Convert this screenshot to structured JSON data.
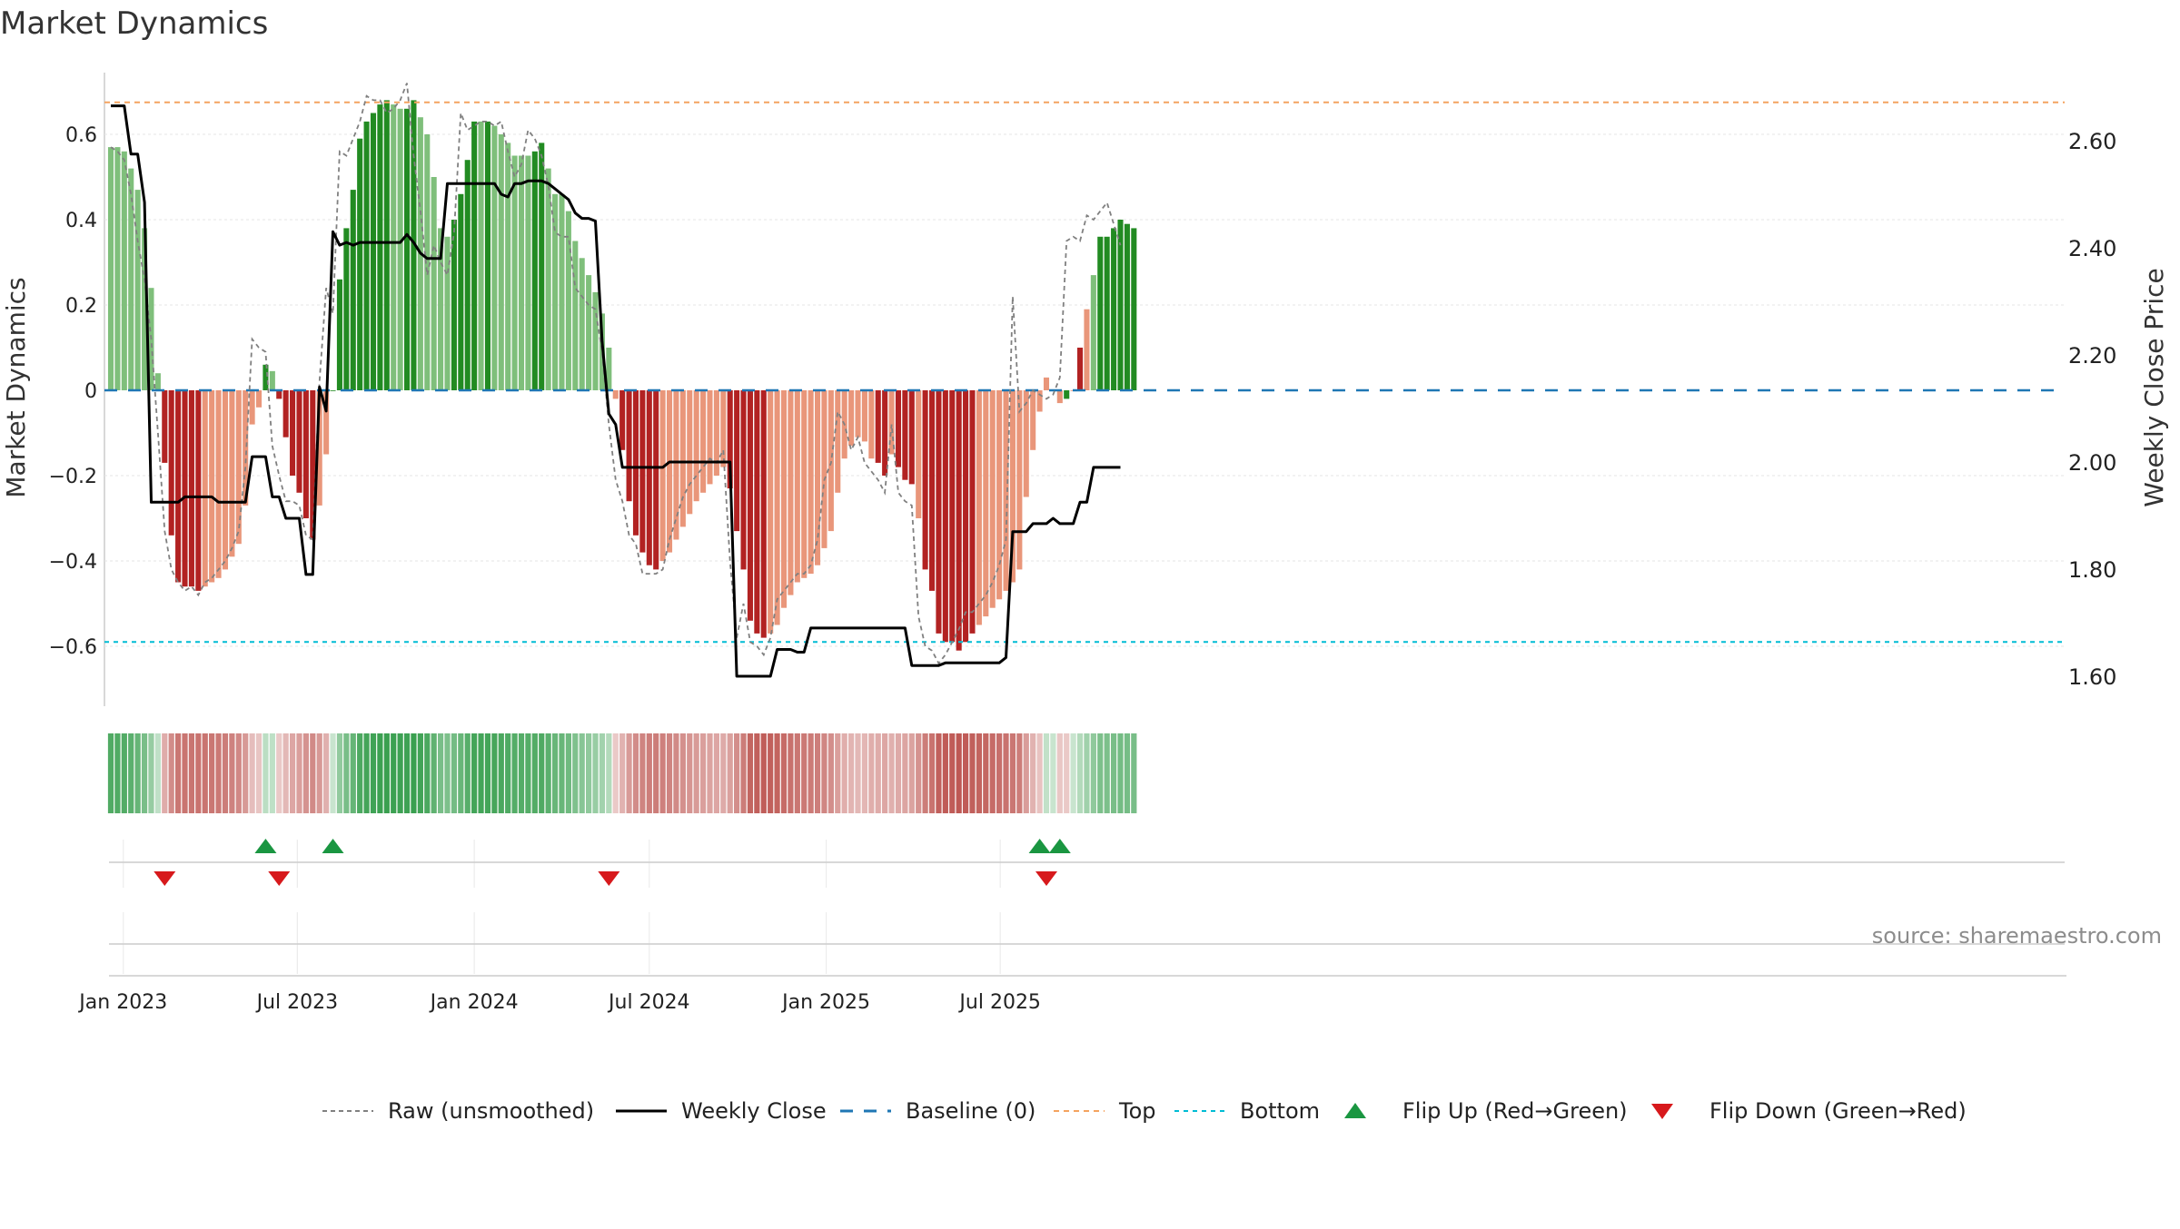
{
  "chart_data": {
    "type": "bar",
    "title": "Market Dynamics",
    "ylabel_left": "Market Dynamics",
    "ylabel_right": "Weekly Close Price",
    "source": "source: sharemaestro.com",
    "left_ylim": [
      -0.74,
      0.74
    ],
    "right_ylim": [
      1.535,
      2.72
    ],
    "left_ticks": [
      {
        "value": 0.6,
        "label": "0.6"
      },
      {
        "value": 0.4,
        "label": "0.4"
      },
      {
        "value": 0.2,
        "label": "0.2"
      },
      {
        "value": 0,
        "label": "0"
      },
      {
        "value": -0.2,
        "label": "−0.2"
      },
      {
        "value": -0.4,
        "label": "−0.4"
      },
      {
        "value": -0.6,
        "label": "−0.6"
      }
    ],
    "right_ticks": [
      {
        "value": 2.6,
        "label": "2.60"
      },
      {
        "value": 2.4,
        "label": "2.40"
      },
      {
        "value": 2.2,
        "label": "2.20"
      },
      {
        "value": 2.0,
        "label": "2.00"
      },
      {
        "value": 1.8,
        "label": "1.80"
      },
      {
        "value": 1.6,
        "label": "1.60"
      }
    ],
    "x_axis": {
      "start": "2022-12-19",
      "step_days": 7,
      "ticks": [
        {
          "date": "2023-01-01",
          "label": "Jan 2023"
        },
        {
          "date": "2023-07-01",
          "label": "Jul 2023"
        },
        {
          "date": "2024-01-01",
          "label": "Jan 2024"
        },
        {
          "date": "2024-07-01",
          "label": "Jul 2024"
        },
        {
          "date": "2025-01-01",
          "label": "Jan 2025"
        },
        {
          "date": "2025-07-01",
          "label": "Jul 2025"
        }
      ]
    },
    "top_level": 0.675,
    "bottom_level": -0.59,
    "baseline": 0,
    "series": [
      {
        "name": "Market Dynamics",
        "kind": "bar",
        "values": [
          0.57,
          0.57,
          0.56,
          0.52,
          0.47,
          0.38,
          0.24,
          0.04,
          -0.17,
          -0.34,
          -0.45,
          -0.46,
          -0.46,
          -0.47,
          -0.46,
          -0.45,
          -0.44,
          -0.42,
          -0.39,
          -0.36,
          -0.27,
          -0.08,
          -0.04,
          0.06,
          0.045,
          -0.02,
          -0.11,
          -0.2,
          -0.24,
          -0.3,
          -0.35,
          -0.27,
          -0.15,
          0.0,
          0.26,
          0.38,
          0.47,
          0.59,
          0.63,
          0.65,
          0.67,
          0.68,
          0.67,
          0.66,
          0.66,
          0.68,
          0.64,
          0.6,
          0.5,
          0.38,
          0.36,
          0.4,
          0.46,
          0.54,
          0.63,
          0.63,
          0.63,
          0.62,
          0.6,
          0.58,
          0.55,
          0.55,
          0.55,
          0.56,
          0.58,
          0.52,
          0.46,
          0.46,
          0.42,
          0.35,
          0.31,
          0.27,
          0.23,
          0.18,
          0.1,
          -0.02,
          -0.14,
          -0.26,
          -0.34,
          -0.38,
          -0.41,
          -0.42,
          -0.4,
          -0.38,
          -0.35,
          -0.32,
          -0.29,
          -0.26,
          -0.24,
          -0.22,
          -0.2,
          -0.18,
          -0.23,
          -0.33,
          -0.42,
          -0.54,
          -0.57,
          -0.58,
          -0.57,
          -0.55,
          -0.51,
          -0.48,
          -0.45,
          -0.44,
          -0.43,
          -0.41,
          -0.37,
          -0.33,
          -0.24,
          -0.16,
          -0.13,
          -0.11,
          -0.12,
          -0.16,
          -0.17,
          -0.2,
          -0.15,
          -0.18,
          -0.21,
          -0.22,
          -0.3,
          -0.42,
          -0.47,
          -0.57,
          -0.59,
          -0.59,
          -0.61,
          -0.59,
          -0.57,
          -0.55,
          -0.53,
          -0.51,
          -0.49,
          -0.47,
          -0.45,
          -0.42,
          -0.25,
          -0.14,
          -0.05,
          0.03,
          0.0,
          -0.03,
          -0.02,
          0.0,
          0.1,
          0.19,
          0.27,
          0.36,
          0.36,
          0.38,
          0.4,
          0.39,
          0.38
        ],
        "colors": [
          "lightgreen",
          "lightgreen",
          "lightgreen",
          "lightgreen",
          "lightgreen",
          "lightgreen",
          "lightgreen",
          "lightgreen",
          "red",
          "red",
          "red",
          "red",
          "red",
          "red",
          "salmon",
          "salmon",
          "salmon",
          "salmon",
          "salmon",
          "salmon",
          "salmon",
          "salmon",
          "salmon",
          "green",
          "lightgreen",
          "red",
          "red",
          "red",
          "red",
          "red",
          "red",
          "salmon",
          "salmon",
          "green",
          "green",
          "green",
          "green",
          "green",
          "green",
          "green",
          "green",
          "green",
          "lightgreen",
          "lightgreen",
          "green",
          "green",
          "lightgreen",
          "lightgreen",
          "lightgreen",
          "lightgreen",
          "lightgreen",
          "green",
          "green",
          "green",
          "green",
          "lightgreen",
          "green",
          "lightgreen",
          "lightgreen",
          "lightgreen",
          "lightgreen",
          "lightgreen",
          "lightgreen",
          "green",
          "green",
          "lightgreen",
          "lightgreen",
          "lightgreen",
          "lightgreen",
          "lightgreen",
          "lightgreen",
          "lightgreen",
          "lightgreen",
          "lightgreen",
          "lightgreen",
          "salmon",
          "red",
          "red",
          "red",
          "red",
          "red",
          "red",
          "salmon",
          "salmon",
          "salmon",
          "salmon",
          "salmon",
          "salmon",
          "salmon",
          "salmon",
          "salmon",
          "salmon",
          "red",
          "red",
          "red",
          "red",
          "red",
          "red",
          "salmon",
          "salmon",
          "salmon",
          "salmon",
          "salmon",
          "salmon",
          "salmon",
          "salmon",
          "salmon",
          "salmon",
          "salmon",
          "salmon",
          "salmon",
          "salmon",
          "salmon",
          "salmon",
          "red",
          "red",
          "salmon",
          "red",
          "red",
          "red",
          "salmon",
          "red",
          "red",
          "red",
          "red",
          "red",
          "red",
          "red",
          "red",
          "salmon",
          "salmon",
          "salmon",
          "salmon",
          "salmon",
          "salmon",
          "salmon",
          "salmon",
          "salmon",
          "salmon",
          "salmon",
          "salmon",
          "salmon",
          "green",
          "salmon",
          "red",
          "salmon",
          "lightgreen",
          "green",
          "green",
          "green",
          "green",
          "green",
          "green",
          "green",
          "green",
          "lightgreen",
          "lightgreen"
        ]
      },
      {
        "name": "Raw (unsmoothed)",
        "kind": "line",
        "values": [
          0.57,
          0.56,
          0.54,
          0.46,
          0.35,
          0.26,
          0.12,
          -0.1,
          -0.33,
          -0.42,
          -0.45,
          -0.47,
          -0.46,
          -0.48,
          -0.45,
          -0.44,
          -0.42,
          -0.4,
          -0.37,
          -0.33,
          -0.18,
          0.12,
          0.1,
          0.09,
          -0.13,
          -0.2,
          -0.26,
          -0.26,
          -0.27,
          -0.34,
          -0.35,
          0.02,
          0.24,
          0.18,
          0.56,
          0.55,
          0.59,
          0.63,
          0.69,
          0.68,
          0.68,
          0.65,
          0.66,
          0.68,
          0.72,
          0.55,
          0.42,
          0.27,
          0.34,
          0.3,
          0.27,
          0.37,
          0.65,
          0.61,
          0.62,
          0.63,
          0.63,
          0.62,
          0.63,
          0.56,
          0.5,
          0.53,
          0.61,
          0.59,
          0.55,
          0.48,
          0.37,
          0.36,
          0.36,
          0.24,
          0.22,
          0.2,
          0.19,
          0.09,
          -0.08,
          -0.21,
          -0.26,
          -0.34,
          -0.36,
          -0.43,
          -0.43,
          -0.43,
          -0.42,
          -0.35,
          -0.3,
          -0.25,
          -0.22,
          -0.2,
          -0.18,
          -0.16,
          -0.17,
          -0.14,
          -0.4,
          -0.58,
          -0.5,
          -0.59,
          -0.6,
          -0.62,
          -0.58,
          -0.49,
          -0.47,
          -0.45,
          -0.43,
          -0.43,
          -0.41,
          -0.35,
          -0.21,
          -0.17,
          -0.05,
          -0.08,
          -0.14,
          -0.11,
          -0.17,
          -0.19,
          -0.21,
          -0.24,
          -0.08,
          -0.24,
          -0.26,
          -0.27,
          -0.53,
          -0.6,
          -0.61,
          -0.64,
          -0.62,
          -0.59,
          -0.56,
          -0.52,
          -0.52,
          -0.5,
          -0.48,
          -0.45,
          -0.41,
          -0.35,
          0.22,
          -0.05,
          -0.03,
          0.0,
          -0.01,
          -0.02,
          -0.01,
          0.03,
          0.35,
          0.36,
          0.35,
          0.41,
          0.4,
          0.42,
          0.44,
          0.39,
          0.34
        ]
      },
      {
        "name": "Weekly Close",
        "kind": "line",
        "axis": "right",
        "values": [
          2.665,
          2.665,
          2.665,
          2.575,
          2.575,
          2.485,
          1.925,
          1.925,
          1.925,
          1.925,
          1.925,
          1.935,
          1.935,
          1.935,
          1.935,
          1.935,
          1.925,
          1.925,
          1.925,
          1.925,
          1.925,
          2.01,
          2.01,
          2.01,
          1.935,
          1.935,
          1.895,
          1.895,
          1.895,
          1.79,
          1.79,
          2.14,
          2.095,
          2.43,
          2.405,
          2.41,
          2.405,
          2.41,
          2.41,
          2.41,
          2.41,
          2.41,
          2.41,
          2.41,
          2.425,
          2.41,
          2.39,
          2.38,
          2.38,
          2.38,
          2.52,
          2.52,
          2.52,
          2.52,
          2.52,
          2.52,
          2.52,
          2.52,
          2.5,
          2.495,
          2.52,
          2.52,
          2.525,
          2.525,
          2.525,
          2.52,
          2.51,
          2.5,
          2.49,
          2.465,
          2.455,
          2.455,
          2.45,
          2.225,
          2.09,
          2.07,
          1.99,
          1.99,
          1.99,
          1.99,
          1.99,
          1.99,
          1.99,
          2.0,
          2.0,
          2.0,
          2.0,
          2.0,
          2.0,
          2.0,
          2.0,
          2.0,
          2.0,
          1.6,
          1.6,
          1.6,
          1.6,
          1.6,
          1.6,
          1.65,
          1.65,
          1.65,
          1.645,
          1.645,
          1.69,
          1.69,
          1.69,
          1.69,
          1.69,
          1.69,
          1.69,
          1.69,
          1.69,
          1.69,
          1.69,
          1.69,
          1.69,
          1.69,
          1.69,
          1.62,
          1.62,
          1.62,
          1.62,
          1.62,
          1.625,
          1.625,
          1.625,
          1.625,
          1.625,
          1.625,
          1.625,
          1.625,
          1.625,
          1.635,
          1.87,
          1.87,
          1.87,
          1.885,
          1.885,
          1.885,
          1.895,
          1.885,
          1.885,
          1.885,
          1.925,
          1.925,
          1.99,
          1.99,
          1.99,
          1.99,
          1.99
        ]
      }
    ],
    "colors": {
      "green": "#228B22",
      "lightgreen": "#7fbf7b",
      "red": "#b22222",
      "salmon": "#e9967a",
      "raw": "#808080",
      "close": "#000000",
      "baseline": "#1f77b4",
      "top": "#f4a460",
      "bottom": "#00bcd4",
      "flip_up": "#1a9641",
      "flip_down": "#d7191c"
    },
    "heatmap_strip": {
      "values_source": "Market Dynamics"
    },
    "flip_up_weeks": [
      23,
      33,
      138,
      141
    ],
    "flip_down_weeks": [
      8,
      25,
      74,
      139
    ],
    "legend": {
      "placement": "bottom",
      "items": [
        {
          "label": "Raw (unsmoothed)",
          "style": "raw"
        },
        {
          "label": "Weekly Close",
          "style": "close"
        },
        {
          "label": "Baseline (0)",
          "style": "baseline"
        },
        {
          "label": "Top",
          "style": "top"
        },
        {
          "label": "Bottom",
          "style": "bottom"
        },
        {
          "label": "Flip Up (Red→Green)",
          "style": "flip_up"
        },
        {
          "label": "Flip Down (Green→Red)",
          "style": "flip_down"
        }
      ]
    }
  }
}
